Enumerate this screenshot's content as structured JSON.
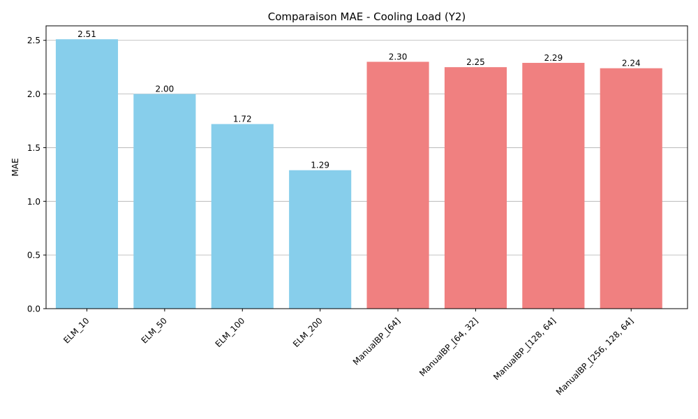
{
  "chart_data": {
    "type": "bar",
    "title": "Comparaison MAE - Cooling Load (Y2)",
    "xlabel": "",
    "ylabel": "MAE",
    "categories": [
      "ELM_10",
      "ELM_50",
      "ELM_100",
      "ELM_200",
      "ManualBP_[64]",
      "ManualBP_[64, 32]",
      "ManualBP_[128, 64]",
      "ManualBP_[256, 128, 64]"
    ],
    "values": [
      2.51,
      2.0,
      1.72,
      1.29,
      2.3,
      2.25,
      2.29,
      2.24
    ],
    "value_labels": [
      "2.51",
      "2.00",
      "1.72",
      "1.29",
      "2.30",
      "2.25",
      "2.29",
      "2.24"
    ],
    "bar_colors": [
      "#87ceeb",
      "#87ceeb",
      "#87ceeb",
      "#87ceeb",
      "#f08080",
      "#f08080",
      "#f08080",
      "#f08080"
    ],
    "ylim": [
      0,
      2.635
    ],
    "yticks": [
      0.0,
      0.5,
      1.0,
      1.5,
      2.0,
      2.5
    ],
    "ytick_labels": [
      "0.0",
      "0.5",
      "1.0",
      "1.5",
      "2.0",
      "2.5"
    ],
    "grid": "y",
    "legend": "none"
  }
}
